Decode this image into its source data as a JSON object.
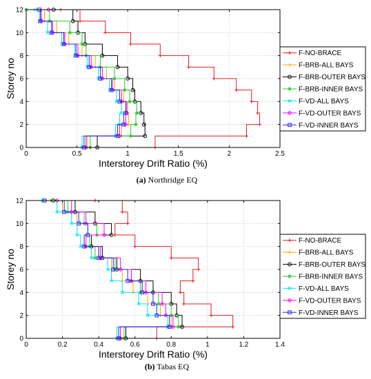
{
  "chart_data": [
    {
      "type": "line",
      "caption_tag": "(a)",
      "caption_text": " Northridge EQ",
      "xlabel": "Interstorey Drift Ratio (%)",
      "ylabel": "Storey no",
      "xlim": [
        0,
        2.5
      ],
      "ylim": [
        0,
        12
      ],
      "xticks": [
        0,
        0.5,
        1,
        1.5,
        2,
        2.5
      ],
      "xtick_labels": [
        "0",
        "0.5",
        "1",
        "1.5",
        "2",
        "2.5"
      ],
      "yticks": [
        0,
        2,
        4,
        6,
        8,
        10,
        12
      ],
      "grid": true,
      "legend_position": "right",
      "y": [
        0,
        1,
        2,
        3,
        4,
        5,
        6,
        7,
        8,
        9,
        10,
        11,
        12
      ],
      "series": [
        {
          "name": "F-NO-BRACE",
          "color": "#e41a1c",
          "marker": "+",
          "x": [
            1.27,
            2.17,
            2.3,
            2.28,
            2.22,
            2.07,
            1.85,
            1.6,
            1.32,
            1.03,
            0.78,
            0.53,
            0.34
          ]
        },
        {
          "name": "F-BRB-ALL BAYS",
          "color": "#ffa500",
          "marker": "+",
          "x": [
            0.6,
            0.94,
            1.01,
            1.0,
            0.96,
            0.87,
            0.79,
            0.68,
            0.55,
            0.42,
            0.3,
            0.18,
            0.1
          ]
        },
        {
          "name": "F-BRB-OUTER BAYS",
          "color": "#000000",
          "marker": "o",
          "x": [
            0.7,
            1.17,
            1.16,
            1.13,
            1.07,
            1.05,
            1.0,
            0.9,
            0.75,
            0.58,
            0.51,
            0.46,
            0.27
          ]
        },
        {
          "name": "F-BRB-INNER BAYS",
          "color": "#22cc22",
          "marker": "*",
          "x": [
            0.63,
            1.03,
            1.08,
            1.09,
            1.02,
            0.97,
            0.87,
            0.73,
            0.59,
            0.55,
            0.43,
            0.23,
            0.0
          ]
        },
        {
          "name": "F-VD-ALL BAYS",
          "color": "#00e5ee",
          "marker": "x",
          "x": [
            0.55,
            0.88,
            0.92,
            0.94,
            0.89,
            0.82,
            0.71,
            0.6,
            0.48,
            0.35,
            0.21,
            0.13,
            0.09
          ]
        },
        {
          "name": "F-VD-OUTER BAYS",
          "color": "#ff00ff",
          "marker": "diamond",
          "x": [
            0.59,
            0.92,
            0.98,
            0.99,
            0.94,
            0.85,
            0.75,
            0.64,
            0.51,
            0.38,
            0.26,
            0.15,
            0.22
          ]
        },
        {
          "name": "F-VD-INNER BAYS",
          "color": "#2222ee",
          "marker": "square",
          "x": [
            0.57,
            0.9,
            0.96,
            0.98,
            0.92,
            0.84,
            0.73,
            0.62,
            0.49,
            0.37,
            0.25,
            0.14,
            0.13
          ]
        }
      ]
    },
    {
      "type": "line",
      "caption_tag": "(b)",
      "caption_text": " Tabas EQ",
      "xlabel": "Interstorey Drift Ratio (%)",
      "ylabel": "Storey no",
      "xlim": [
        0,
        1.4
      ],
      "ylim": [
        0,
        12
      ],
      "xticks": [
        0,
        0.2,
        0.4,
        0.6,
        0.8,
        1,
        1.2,
        1.4
      ],
      "xtick_labels": [
        "0",
        "0.2",
        "0.4",
        "0.6",
        "0.8",
        "1",
        "1.2",
        "1.4"
      ],
      "yticks": [
        0,
        2,
        4,
        6,
        8,
        10,
        12
      ],
      "grid": true,
      "legend_position": "right",
      "y": [
        0,
        1,
        2,
        3,
        4,
        5,
        6,
        7,
        8,
        9,
        10,
        11,
        12
      ],
      "series": [
        {
          "name": "F-NO-BRACE",
          "color": "#e41a1c",
          "marker": "+",
          "x": [
            0.72,
            1.14,
            1.02,
            0.87,
            0.85,
            0.92,
            0.95,
            0.8,
            0.6,
            0.49,
            0.56,
            0.53,
            0.38
          ]
        },
        {
          "name": "F-BRB-ALL BAYS",
          "color": "#ffa500",
          "marker": "+",
          "x": [
            0.52,
            0.8,
            0.74,
            0.67,
            0.59,
            0.53,
            0.47,
            0.4,
            0.32,
            0.34,
            0.28,
            0.2,
            0.11
          ]
        },
        {
          "name": "F-BRB-OUTER BAYS",
          "color": "#000000",
          "marker": "o",
          "x": [
            0.55,
            0.86,
            0.83,
            0.8,
            0.7,
            0.63,
            0.5,
            0.42,
            0.36,
            0.47,
            0.38,
            0.27,
            0.15
          ]
        },
        {
          "name": "F-BRB-INNER BAYS",
          "color": "#22cc22",
          "marker": "*",
          "x": [
            0.54,
            0.84,
            0.8,
            0.73,
            0.63,
            0.58,
            0.49,
            0.38,
            0.35,
            0.39,
            0.32,
            0.23,
            0.14
          ]
        },
        {
          "name": "F-VD-ALL BAYS",
          "color": "#00e5ee",
          "marker": "x",
          "x": [
            0.5,
            0.78,
            0.67,
            0.62,
            0.53,
            0.47,
            0.45,
            0.36,
            0.3,
            0.28,
            0.25,
            0.17,
            0.09
          ]
        },
        {
          "name": "F-VD-OUTER BAYS",
          "color": "#ff00ff",
          "marker": "diamond",
          "x": [
            0.52,
            0.81,
            0.77,
            0.75,
            0.66,
            0.58,
            0.52,
            0.41,
            0.33,
            0.43,
            0.33,
            0.25,
            0.17
          ]
        },
        {
          "name": "F-VD-INNER BAYS",
          "color": "#2222ee",
          "marker": "square",
          "x": [
            0.51,
            0.79,
            0.72,
            0.7,
            0.64,
            0.56,
            0.48,
            0.4,
            0.32,
            0.34,
            0.29,
            0.21,
            0.1
          ]
        }
      ]
    }
  ]
}
